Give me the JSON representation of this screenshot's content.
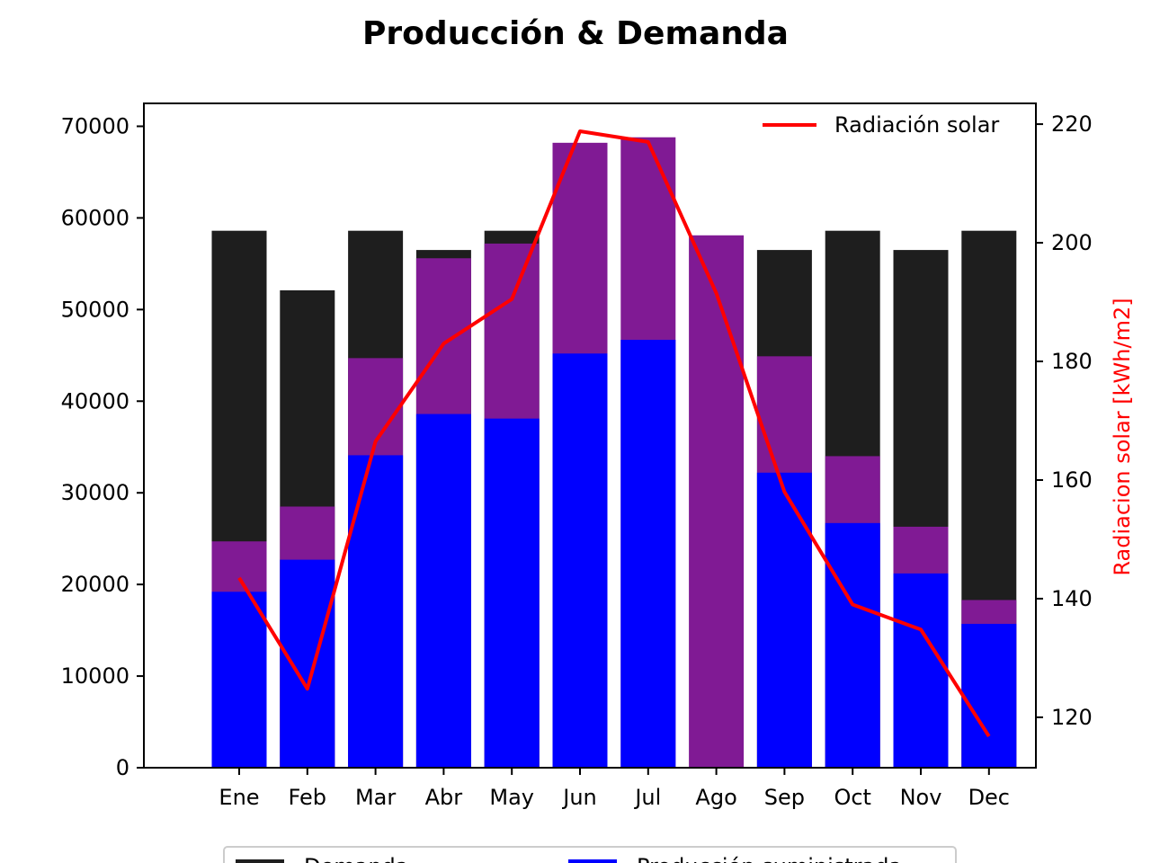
{
  "chart_data": {
    "type": "bar",
    "title": "Producción & Demanda",
    "categories": [
      "Ene",
      "Feb",
      "Mar",
      "Abr",
      "May",
      "Jun",
      "Jul",
      "Ago",
      "Sep",
      "Oct",
      "Nov",
      "Dec"
    ],
    "ylim": [
      0,
      72500
    ],
    "yticks": [
      0,
      10000,
      20000,
      30000,
      40000,
      50000,
      60000,
      70000
    ],
    "y2label": "Radiacion solar [kWh/m2]",
    "y2lim": [
      111.5,
      223.5
    ],
    "y2ticks": [
      120,
      140,
      160,
      180,
      200,
      220
    ],
    "series": [
      {
        "name": "Demanda",
        "color": "#1e1e1e",
        "values": [
          58600,
          52100,
          58600,
          56500,
          58600,
          0,
          0,
          0,
          56500,
          58600,
          56500,
          58600
        ]
      },
      {
        "name": "",
        "color": "#801a94",
        "values": [
          24700,
          28500,
          44700,
          55600,
          57200,
          68200,
          68800,
          58100,
          44900,
          34000,
          26300,
          18300
        ]
      },
      {
        "name": "Producción suministrada",
        "color": "#0000ff",
        "values": [
          19200,
          22700,
          34100,
          38600,
          38100,
          45200,
          46700,
          0,
          32200,
          26700,
          21200,
          15700
        ]
      }
    ],
    "line_series": {
      "name": "Radiación solar",
      "color": "#ff0000",
      "axis": "right",
      "x": [
        "Ene",
        "Feb",
        "Mar",
        "Abr",
        "May",
        "Jun",
        "Jul",
        "Ago",
        "Sep",
        "Oct",
        "Nov",
        "Dec"
      ],
      "values": [
        143.5,
        124.8,
        166.5,
        183,
        190.5,
        218.8,
        217,
        191.5,
        158,
        139,
        134.8,
        116.8
      ]
    },
    "legend": {
      "upper": "top-right",
      "lower": "bottom-center"
    }
  }
}
